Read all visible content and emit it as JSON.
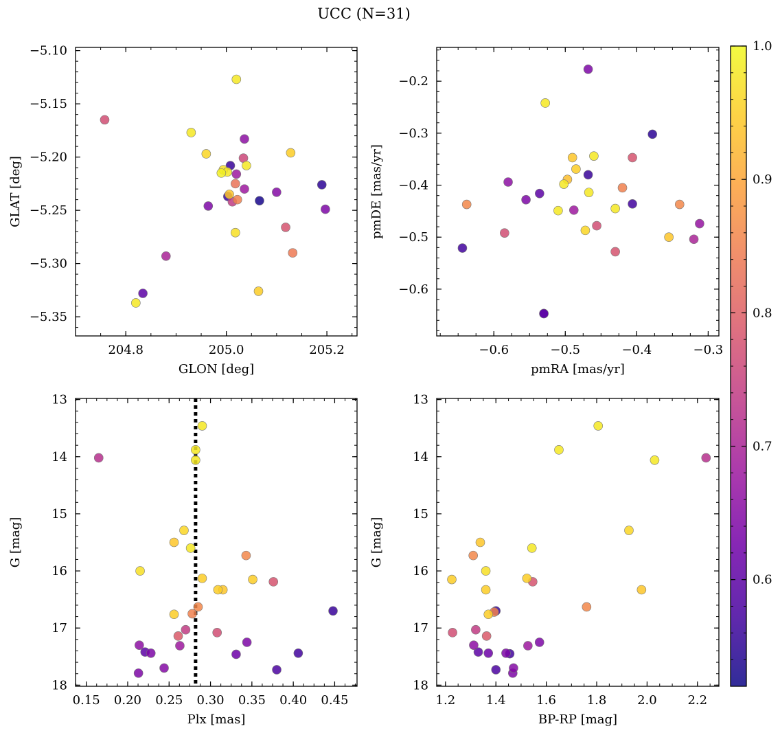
{
  "figure": {
    "title": "UCC (N=31)"
  },
  "colors": {
    "cmap": [
      "#0d0887",
      "#46039f",
      "#7201a8",
      "#9c179e",
      "#bd3786",
      "#d8576b",
      "#ed7953",
      "#fb9f3a",
      "#fdca26",
      "#f0f921"
    ],
    "vline": "#000000"
  },
  "colorbar": {
    "vmin": 0.52,
    "vmax": 1.0,
    "ticks": [
      0.6,
      0.7,
      0.8,
      0.9,
      1.0
    ],
    "tick_labels": [
      "0.6",
      "0.7",
      "0.8",
      "0.9",
      "1.0"
    ]
  },
  "chart_data": [
    {
      "type": "scatter",
      "xlabel": "GLON [deg]",
      "ylabel": "GLAT [deg]",
      "xlim": [
        204.7,
        205.26
      ],
      "ylim": [
        -5.368,
        -5.097
      ],
      "xticks": [
        204.8,
        205.0,
        205.2
      ],
      "xtick_labels": [
        "204.8",
        "205.0",
        "205.2"
      ],
      "yticks": [
        -5.35,
        -5.3,
        -5.25,
        -5.2,
        -5.15,
        -5.1
      ],
      "ytick_labels": [
        "−5.35",
        "−5.30",
        "−5.25",
        "−5.20",
        "−5.15",
        "−5.10"
      ],
      "points": [
        [
          204.758,
          -5.165,
          0.77
        ],
        [
          204.93,
          -5.177,
          0.98
        ],
        [
          204.96,
          -5.197,
          0.96
        ],
        [
          205.02,
          -5.127,
          0.98
        ],
        [
          205.036,
          -5.183,
          0.66
        ],
        [
          205.034,
          -5.201,
          0.76
        ],
        [
          205.128,
          -5.196,
          0.95
        ],
        [
          205.008,
          -5.208,
          0.56
        ],
        [
          204.994,
          -5.212,
          0.97
        ],
        [
          204.99,
          -5.215,
          0.99
        ],
        [
          205.002,
          -5.214,
          0.98
        ],
        [
          205.04,
          -5.208,
          0.98
        ],
        [
          205.02,
          -5.216,
          0.68
        ],
        [
          205.018,
          -5.225,
          0.83
        ],
        [
          205.036,
          -5.23,
          0.68
        ],
        [
          205.003,
          -5.237,
          0.56
        ],
        [
          205.006,
          -5.235,
          0.94
        ],
        [
          205.022,
          -5.24,
          0.85
        ],
        [
          205.012,
          -5.242,
          0.74
        ],
        [
          205.066,
          -5.241,
          0.53
        ],
        [
          205.1,
          -5.233,
          0.65
        ],
        [
          204.964,
          -5.246,
          0.64
        ],
        [
          205.19,
          -5.226,
          0.55
        ],
        [
          205.197,
          -5.249,
          0.64
        ],
        [
          205.018,
          -5.271,
          0.97
        ],
        [
          205.118,
          -5.266,
          0.78
        ],
        [
          205.132,
          -5.29,
          0.84
        ],
        [
          204.88,
          -5.293,
          0.7
        ],
        [
          205.064,
          -5.326,
          0.95
        ],
        [
          204.834,
          -5.328,
          0.6
        ],
        [
          204.82,
          -5.337,
          0.98
        ]
      ]
    },
    {
      "type": "scatter",
      "xlabel": "pmRA [mas/yr]",
      "ylabel": "pmDE [mas/yr]",
      "xlim": [
        -0.68,
        -0.285
      ],
      "ylim": [
        -0.69,
        -0.135
      ],
      "xticks": [
        -0.6,
        -0.5,
        -0.4,
        -0.3
      ],
      "xtick_labels": [
        "−0.6",
        "−0.5",
        "−0.4",
        "−0.3"
      ],
      "yticks": [
        -0.6,
        -0.5,
        -0.4,
        -0.3,
        -0.2
      ],
      "ytick_labels": [
        "−0.6",
        "−0.5",
        "−0.4",
        "−0.3",
        "−0.2"
      ],
      "points": [
        [
          -0.468,
          -0.177,
          0.64
        ],
        [
          -0.528,
          -0.242,
          0.98
        ],
        [
          -0.378,
          -0.302,
          0.55
        ],
        [
          -0.49,
          -0.347,
          0.94
        ],
        [
          -0.46,
          -0.344,
          0.98
        ],
        [
          -0.406,
          -0.347,
          0.78
        ],
        [
          -0.485,
          -0.369,
          0.95
        ],
        [
          -0.468,
          -0.38,
          0.56
        ],
        [
          -0.497,
          -0.389,
          0.93
        ],
        [
          -0.502,
          -0.398,
          0.98
        ],
        [
          -0.58,
          -0.394,
          0.66
        ],
        [
          -0.467,
          -0.414,
          0.98
        ],
        [
          -0.42,
          -0.405,
          0.85
        ],
        [
          -0.536,
          -0.416,
          0.6
        ],
        [
          -0.555,
          -0.428,
          0.64
        ],
        [
          -0.638,
          -0.437,
          0.86
        ],
        [
          -0.406,
          -0.436,
          0.57
        ],
        [
          -0.34,
          -0.437,
          0.86
        ],
        [
          -0.51,
          -0.449,
          0.98
        ],
        [
          -0.488,
          -0.448,
          0.68
        ],
        [
          -0.43,
          -0.445,
          0.98
        ],
        [
          -0.456,
          -0.478,
          0.77
        ],
        [
          -0.472,
          -0.487,
          0.96
        ],
        [
          -0.585,
          -0.492,
          0.77
        ],
        [
          -0.312,
          -0.474,
          0.67
        ],
        [
          -0.355,
          -0.5,
          0.94
        ],
        [
          -0.32,
          -0.504,
          0.7
        ],
        [
          -0.644,
          -0.521,
          0.57
        ],
        [
          -0.43,
          -0.528,
          0.78
        ],
        [
          -0.53,
          -0.647,
          0.6
        ],
        [
          -0.53,
          -0.647,
          0.6
        ]
      ]
    },
    {
      "type": "scatter",
      "xlabel": "Plx [mas]",
      "ylabel": "G [mag]",
      "xlim": [
        0.137,
        0.477
      ],
      "ylim": [
        18.02,
        12.98
      ],
      "y_inverted": true,
      "xticks": [
        0.15,
        0.2,
        0.25,
        0.3,
        0.35,
        0.4,
        0.45
      ],
      "xtick_labels": [
        "0.15",
        "0.20",
        "0.25",
        "0.30",
        "0.35",
        "0.40",
        "0.45"
      ],
      "yticks": [
        13,
        14,
        15,
        16,
        17,
        18
      ],
      "ytick_labels": [
        "13",
        "14",
        "15",
        "16",
        "17",
        "18"
      ],
      "vline": 0.282,
      "points": [
        [
          0.29,
          13.46,
          0.98
        ],
        [
          0.282,
          13.88,
          0.98
        ],
        [
          0.282,
          14.06,
          0.98
        ],
        [
          0.165,
          14.02,
          0.72
        ],
        [
          0.268,
          15.29,
          0.96
        ],
        [
          0.256,
          15.5,
          0.94
        ],
        [
          0.276,
          15.6,
          0.98
        ],
        [
          0.343,
          15.73,
          0.86
        ],
        [
          0.215,
          16.0,
          0.97
        ],
        [
          0.29,
          16.13,
          0.95
        ],
        [
          0.351,
          16.15,
          0.95
        ],
        [
          0.376,
          16.19,
          0.78
        ],
        [
          0.309,
          16.33,
          0.95
        ],
        [
          0.315,
          16.33,
          0.94
        ],
        [
          0.448,
          16.7,
          0.56
        ],
        [
          0.285,
          16.63,
          0.86
        ],
        [
          0.278,
          16.75,
          0.85
        ],
        [
          0.256,
          16.76,
          0.95
        ],
        [
          0.27,
          17.03,
          0.74
        ],
        [
          0.308,
          17.08,
          0.77
        ],
        [
          0.261,
          17.14,
          0.79
        ],
        [
          0.214,
          17.3,
          0.66
        ],
        [
          0.263,
          17.31,
          0.68
        ],
        [
          0.344,
          17.25,
          0.64
        ],
        [
          0.221,
          17.42,
          0.6
        ],
        [
          0.228,
          17.44,
          0.64
        ],
        [
          0.331,
          17.46,
          0.62
        ],
        [
          0.406,
          17.44,
          0.57
        ],
        [
          0.244,
          17.7,
          0.65
        ],
        [
          0.38,
          17.73,
          0.58
        ],
        [
          0.213,
          17.79,
          0.64
        ]
      ]
    },
    {
      "type": "scatter",
      "xlabel": "BP-RP [mag]",
      "ylabel": "G [mag]",
      "xlim": [
        1.165,
        2.285
      ],
      "ylim": [
        18.02,
        12.98
      ],
      "y_inverted": true,
      "xticks": [
        1.2,
        1.4,
        1.6,
        1.8,
        2.0,
        2.2
      ],
      "xtick_labels": [
        "1.2",
        "1.4",
        "1.6",
        "1.8",
        "2.0",
        "2.2"
      ],
      "yticks": [
        13,
        14,
        15,
        16,
        17,
        18
      ],
      "ytick_labels": [
        "13",
        "14",
        "15",
        "16",
        "17",
        "18"
      ],
      "points": [
        [
          1.806,
          13.46,
          0.98
        ],
        [
          1.65,
          13.88,
          0.98
        ],
        [
          2.03,
          14.06,
          0.98
        ],
        [
          2.234,
          14.02,
          0.72
        ],
        [
          1.928,
          15.29,
          0.96
        ],
        [
          1.338,
          15.5,
          0.94
        ],
        [
          1.543,
          15.6,
          0.98
        ],
        [
          1.31,
          15.73,
          0.86
        ],
        [
          1.36,
          16.0,
          0.97
        ],
        [
          1.225,
          16.15,
          0.95
        ],
        [
          1.523,
          16.13,
          0.95
        ],
        [
          1.546,
          16.19,
          0.78
        ],
        [
          1.36,
          16.33,
          0.95
        ],
        [
          1.978,
          16.33,
          0.94
        ],
        [
          1.4,
          16.7,
          0.56
        ],
        [
          1.76,
          16.63,
          0.86
        ],
        [
          1.393,
          16.72,
          0.85
        ],
        [
          1.37,
          16.76,
          0.95
        ],
        [
          1.228,
          17.08,
          0.77
        ],
        [
          1.32,
          17.03,
          0.74
        ],
        [
          1.363,
          17.14,
          0.79
        ],
        [
          1.312,
          17.3,
          0.66
        ],
        [
          1.527,
          17.31,
          0.68
        ],
        [
          1.573,
          17.25,
          0.64
        ],
        [
          1.33,
          17.42,
          0.6
        ],
        [
          1.37,
          17.44,
          0.62
        ],
        [
          1.44,
          17.44,
          0.64
        ],
        [
          1.455,
          17.45,
          0.57
        ],
        [
          1.47,
          17.7,
          0.65
        ],
        [
          1.4,
          17.73,
          0.58
        ],
        [
          1.467,
          17.79,
          0.64
        ]
      ]
    }
  ]
}
